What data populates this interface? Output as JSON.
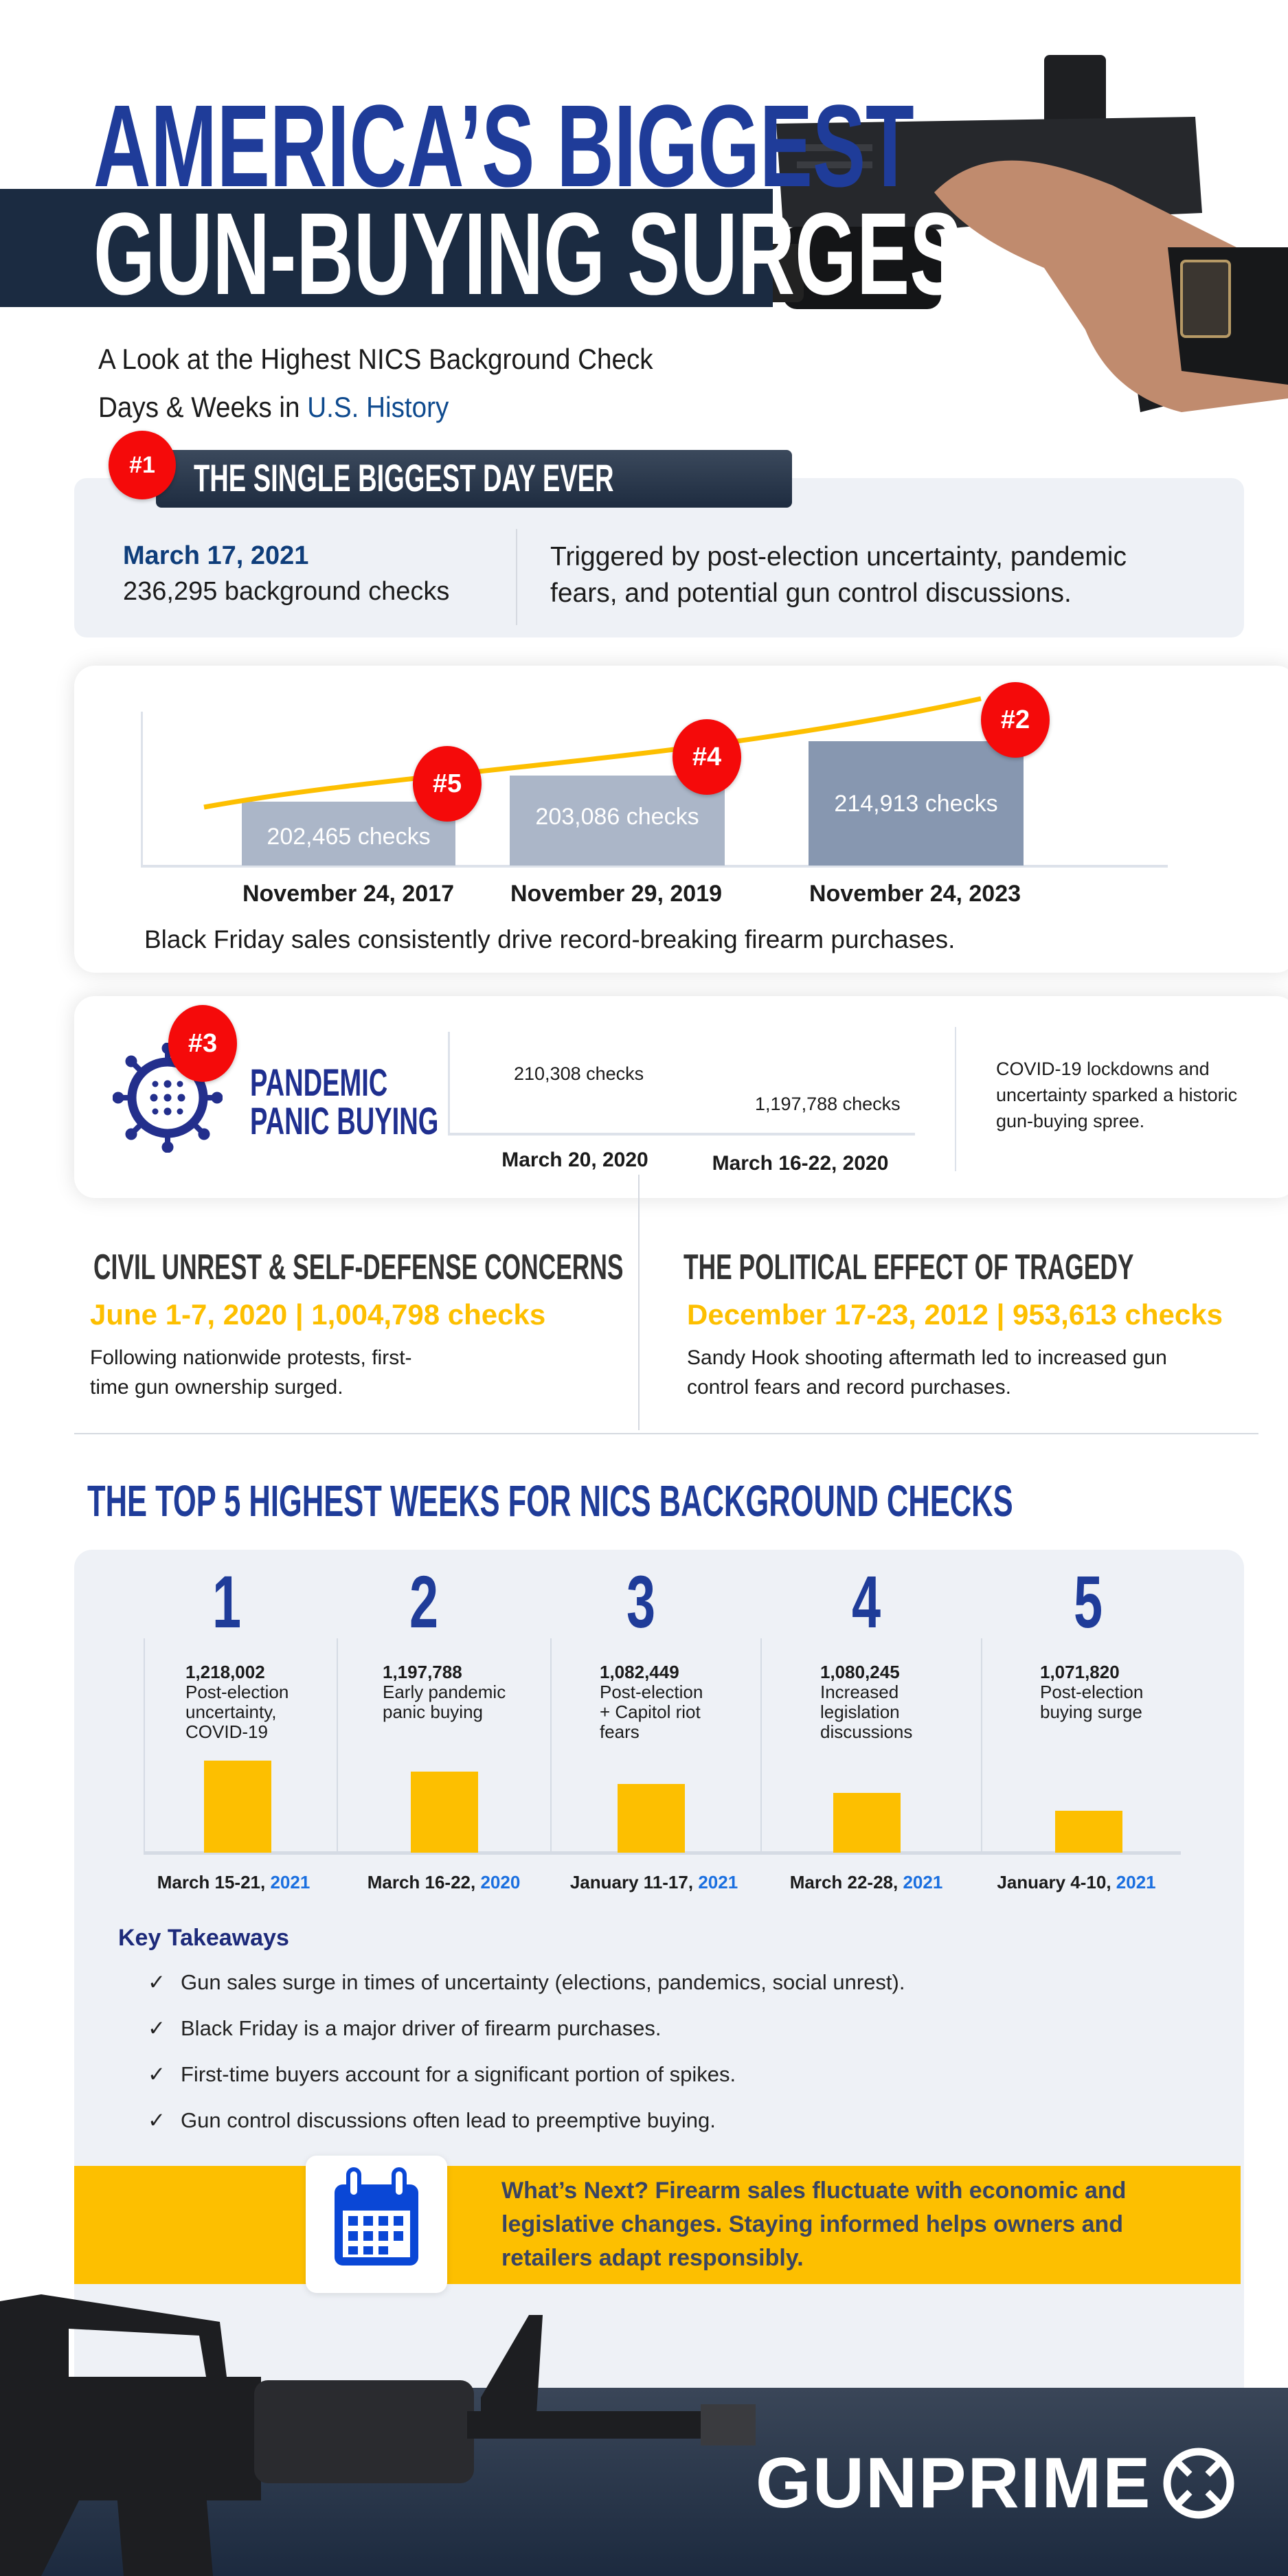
{
  "header": {
    "title_line1": "AMERICA’S BIGGEST",
    "title_line2": "GUN-BUYING SURGES",
    "subtitle_line1": "A Look at the Highest NICS Background Check",
    "subtitle_line2_plain": "Days & Weeks in ",
    "subtitle_line2_highlight": "U.S. History"
  },
  "biggest_day": {
    "rank": "#1",
    "heading": "THE SINGLE BIGGEST DAY EVER",
    "date": "March 17, 2021",
    "checks": "236,295 background checks",
    "description_line1": "Triggered by post-election uncertainty, pandemic",
    "description_line2": "fears, and potential gun control discussions."
  },
  "black_friday": {
    "bars": [
      {
        "rank": "#5",
        "label": "202,465  checks",
        "date": "November 24, 2017",
        "value": 202465
      },
      {
        "rank": "#4",
        "label": "203,086 checks",
        "date": "November 29, 2019",
        "value": 203086
      },
      {
        "rank": "#2",
        "label": "214,913 checks",
        "date": "November 24, 2023",
        "value": 214913
      }
    ],
    "caption": "Black Friday sales consistently drive record-breaking firearm purchases."
  },
  "pandemic": {
    "rank": "#3",
    "title_line1": "PANDEMIC",
    "title_line2": "PANIC BUYING",
    "points": [
      {
        "label": "210,308 checks",
        "date": "March 20, 2020"
      },
      {
        "label": "1,197,788 checks",
        "date": "March 16-22, 2020"
      }
    ],
    "desc_line1": "COVID-19 lockdowns and",
    "desc_line2": "uncertainty sparked a historic",
    "desc_line3": "gun-buying spree."
  },
  "civil_unrest": {
    "heading": "CIVIL UNREST & SELF-DEFENSE CONCERNS",
    "stat": "June 1-7, 2020 | 1,004,798 checks",
    "text_line1": "Following nationwide protests, first-",
    "text_line2": "time gun ownership surged."
  },
  "tragedy": {
    "heading": "THE POLITICAL EFFECT OF TRAGEDY",
    "stat": "December 17-23, 2012 | 953,613 checks",
    "text_line1": "Sandy Hook shooting aftermath led to increased gun",
    "text_line2": "control fears and record purchases."
  },
  "top5": {
    "heading": "THE TOP 5 HIGHEST WEEKS FOR NICS BACKGROUND CHECKS",
    "weeks": [
      {
        "rank": "1",
        "value": "1,218,002",
        "desc": [
          "Post-election",
          "uncertainty,",
          "COVID-19"
        ],
        "dates": "March 15-21, ",
        "year": "2021"
      },
      {
        "rank": "2",
        "value": "1,197,788",
        "desc": [
          "Early pandemic",
          "panic buying"
        ],
        "dates": "March 16-22, ",
        "year": "2020"
      },
      {
        "rank": "3",
        "value": "1,082,449",
        "desc": [
          "Post-election",
          "+ Capitol riot",
          "fears"
        ],
        "dates": "January 11-17, ",
        "year": "2021"
      },
      {
        "rank": "4",
        "value": "1,080,245",
        "desc": [
          "Increased",
          "legislation",
          "discussions"
        ],
        "dates": "March 22-28, ",
        "year": "2021"
      },
      {
        "rank": "5",
        "value": "1,071,820",
        "desc": [
          "Post-election",
          "buying surge"
        ],
        "dates": "January 4-10, ",
        "year": "2021"
      }
    ]
  },
  "takeaways": {
    "heading": "Key Takeaways",
    "check": "✓",
    "items": [
      "Gun sales surge in times of uncertainty (elections, pandemics, social unrest).",
      "Black Friday is a major driver of firearm purchases.",
      "First-time buyers account for a significant portion of spikes.",
      "Gun control discussions often lead to preemptive buying."
    ]
  },
  "whats_next": {
    "line1": "What’s Next? Firearm sales fluctuate with economic and",
    "line2": "legislative changes. Staying informed helps owners and",
    "line3": "retailers adapt responsibly.",
    "icon": "calendar-icon"
  },
  "footer": {
    "logo": "GUNPRIME"
  },
  "colors": {
    "navy": "#1b2b41",
    "blue": "#1f3c99",
    "yellow": "#fdbf00",
    "red": "#f50a0a",
    "light_bg": "#eef1f6"
  }
}
